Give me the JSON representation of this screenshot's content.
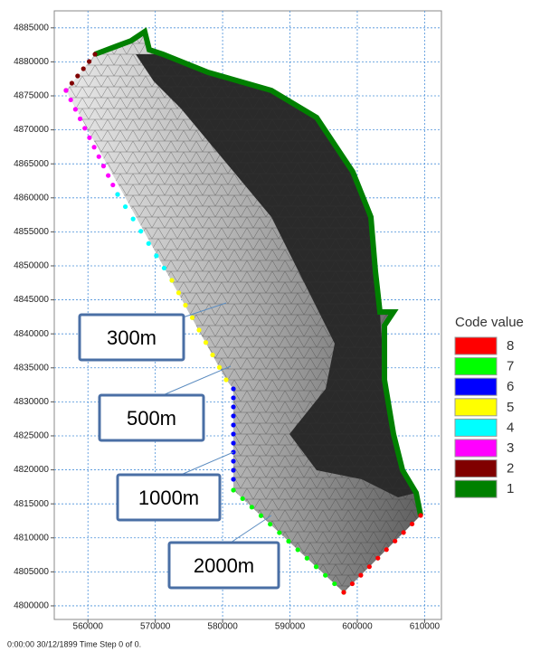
{
  "chart_data": {
    "type": "mesh",
    "xlim": [
      555000,
      612500
    ],
    "ylim": [
      4798000,
      4887500
    ],
    "xticks": [
      560000,
      570000,
      580000,
      590000,
      600000,
      610000
    ],
    "yticks": [
      4800000,
      4805000,
      4810000,
      4815000,
      4820000,
      4825000,
      4830000,
      4835000,
      4840000,
      4845000,
      4850000,
      4855000,
      4860000,
      4865000,
      4870000,
      4875000,
      4880000,
      4885000
    ],
    "grid": true,
    "annotations": [
      "300m",
      "500m",
      "1000m",
      "2000m"
    ],
    "legend": {
      "title": "Code value",
      "items": [
        {
          "label": "8",
          "color": "#ff0000"
        },
        {
          "label": "7",
          "color": "#00ff00"
        },
        {
          "label": "6",
          "color": "#0000ff"
        },
        {
          "label": "5",
          "color": "#ffff00"
        },
        {
          "label": "4",
          "color": "#00ffff"
        },
        {
          "label": "3",
          "color": "#ff00ff"
        },
        {
          "label": "2",
          "color": "#800000"
        },
        {
          "label": "1",
          "color": "#008000"
        }
      ]
    },
    "footer": "0:00:00 30/12/1899  Time Step 0 of 0."
  }
}
